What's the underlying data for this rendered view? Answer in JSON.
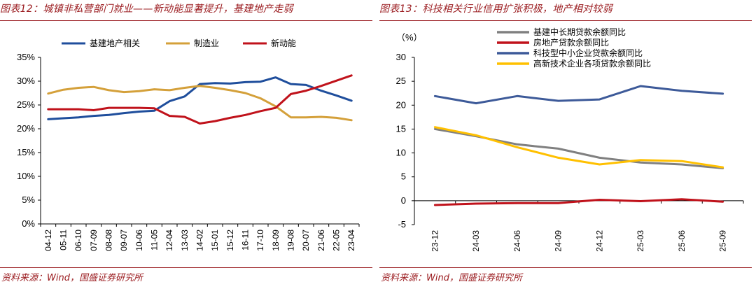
{
  "left": {
    "title": "图表12：城镇非私营部门就业——新动能显著提升，基建地产走弱",
    "source": "资料来源：Wind，国盛证券研究所",
    "chart_data": {
      "type": "line",
      "categories": [
        "04-12",
        "05-11",
        "06-10",
        "07-09",
        "08-08",
        "09-07",
        "10-06",
        "11-05",
        "12-04",
        "13-03",
        "14-02",
        "15-01",
        "15-12",
        "16-11",
        "17-10",
        "18-09",
        "19-08",
        "20-07",
        "21-06",
        "22-05",
        "23-04"
      ],
      "series": [
        {
          "name": "基建地产相关",
          "color": "#1f4e9c",
          "values": [
            22.0,
            22.2,
            22.4,
            22.7,
            22.9,
            23.3,
            23.6,
            23.8,
            25.8,
            26.8,
            29.4,
            29.6,
            29.5,
            29.8,
            29.9,
            30.8,
            29.4,
            29.2,
            28.0,
            27.0,
            25.9
          ]
        },
        {
          "name": "制造业",
          "color": "#d4a03a",
          "values": [
            27.4,
            28.2,
            28.6,
            28.8,
            28.1,
            27.7,
            27.9,
            28.3,
            28.1,
            28.6,
            29.0,
            28.6,
            28.1,
            27.5,
            26.4,
            24.7,
            22.4,
            22.4,
            22.5,
            22.3,
            21.8
          ]
        },
        {
          "name": "新动能",
          "color": "#c0121b",
          "values": [
            24.1,
            24.1,
            24.1,
            23.9,
            24.4,
            24.4,
            24.4,
            24.3,
            22.7,
            22.5,
            21.1,
            21.6,
            22.3,
            22.9,
            23.7,
            24.4,
            27.3,
            28.0,
            29.0,
            30.1,
            31.2
          ]
        }
      ],
      "y_ticks": [
        "0%",
        "5%",
        "10%",
        "15%",
        "20%",
        "25%",
        "30%",
        "35%"
      ],
      "ylim": [
        0,
        35
      ],
      "legend_position": "top"
    }
  },
  "right": {
    "title": "图表13：科技相关行业信用扩张积极，地产相对较弱",
    "source": "资料来源：Wind，国盛证券研究所",
    "chart_data": {
      "type": "line",
      "unit_label": "（%）",
      "categories": [
        "23-12",
        "24-03",
        "24-06",
        "24-09",
        "24-12",
        "25-03",
        "25-06",
        "25-09"
      ],
      "series": [
        {
          "name": "基建中长期贷款余额同比",
          "color": "#808080",
          "values": [
            15.0,
            13.5,
            11.8,
            10.9,
            9.0,
            8.0,
            7.6,
            6.8
          ]
        },
        {
          "name": "房地产贷款余额同比",
          "color": "#c0121b",
          "values": [
            -0.9,
            -0.6,
            -0.5,
            -0.5,
            0.2,
            -0.1,
            0.3,
            -0.2
          ]
        },
        {
          "name": "科技型中小企业贷款余额同比",
          "color": "#3d5a99",
          "values": [
            21.9,
            20.4,
            21.9,
            20.9,
            21.2,
            24.0,
            23.0,
            22.4
          ]
        },
        {
          "name": "高新技术企业各项贷款余额同比",
          "color": "#ffc000",
          "values": [
            15.4,
            13.7,
            11.2,
            9.0,
            7.6,
            8.5,
            8.3,
            7.0
          ]
        }
      ],
      "y_ticks": [
        "-5",
        "0",
        "5",
        "10",
        "15",
        "20",
        "25",
        "30"
      ],
      "ylim": [
        -5,
        30
      ],
      "legend_position": "top-left"
    }
  }
}
